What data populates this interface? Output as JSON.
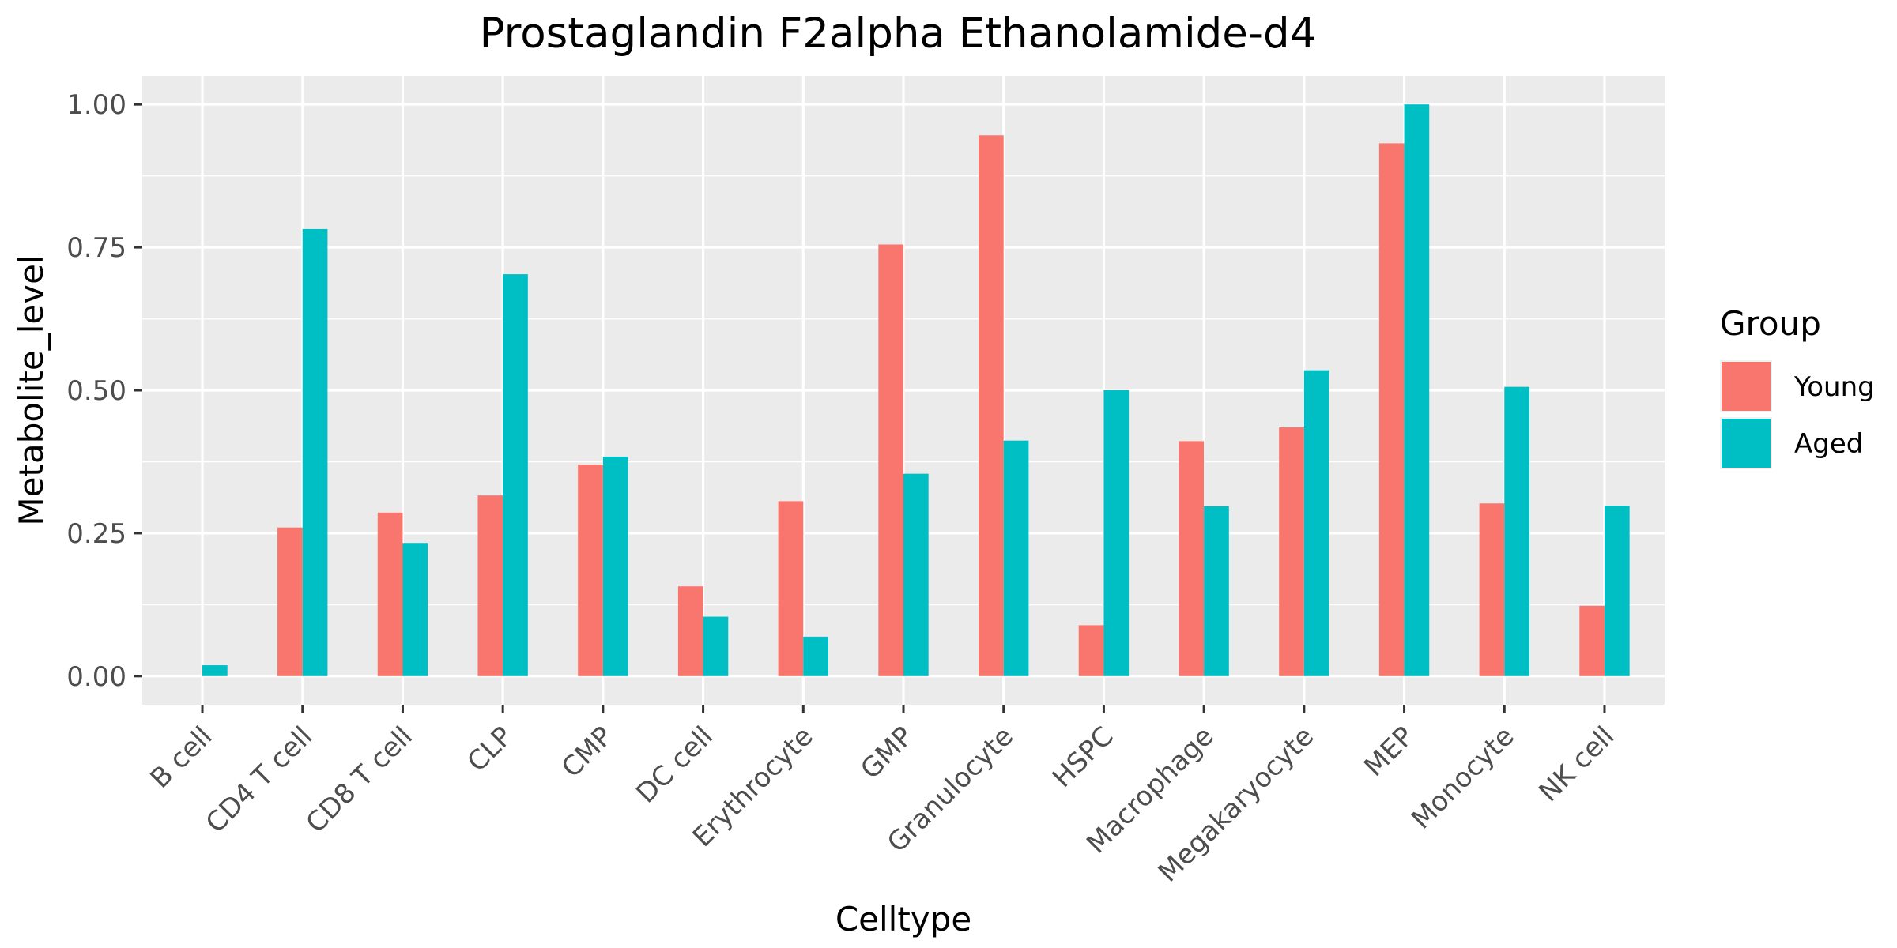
{
  "chart_data": {
    "type": "bar",
    "title": "Prostaglandin F2alpha Ethanolamide-d4",
    "xlabel": "Celltype",
    "ylabel": "Metabolite_level",
    "ylim": [
      -0.05,
      1.05
    ],
    "yticks": [
      0.0,
      0.25,
      0.5,
      0.75,
      1.0
    ],
    "ytick_labels": [
      "0.00",
      "0.25",
      "0.50",
      "0.75",
      "1.00"
    ],
    "grid": true,
    "legend": {
      "title": "Group",
      "position": "right"
    },
    "categories": [
      "B cell",
      "CD4 T cell",
      "CD8 T cell",
      "CLP",
      "CMP",
      "DC cell",
      "Erythrocyte",
      "GMP",
      "Granulocyte",
      "HSPC",
      "Macrophage",
      "Megakaryocyte",
      "MEP",
      "Monocyte",
      "NK cell"
    ],
    "series": [
      {
        "name": "Young",
        "color": "#F8766D",
        "values": [
          0.0,
          0.26,
          0.286,
          0.316,
          0.37,
          0.157,
          0.306,
          0.755,
          0.946,
          0.089,
          0.411,
          0.435,
          0.932,
          0.302,
          0.123
        ]
      },
      {
        "name": "Aged",
        "color": "#00BFC4",
        "values": [
          0.019,
          0.782,
          0.233,
          0.703,
          0.384,
          0.104,
          0.069,
          0.354,
          0.412,
          0.5,
          0.297,
          0.535,
          1.0,
          0.506,
          0.298
        ]
      }
    ],
    "panel_background": "#EBEBEB",
    "grid_color": "#FFFFFF"
  }
}
